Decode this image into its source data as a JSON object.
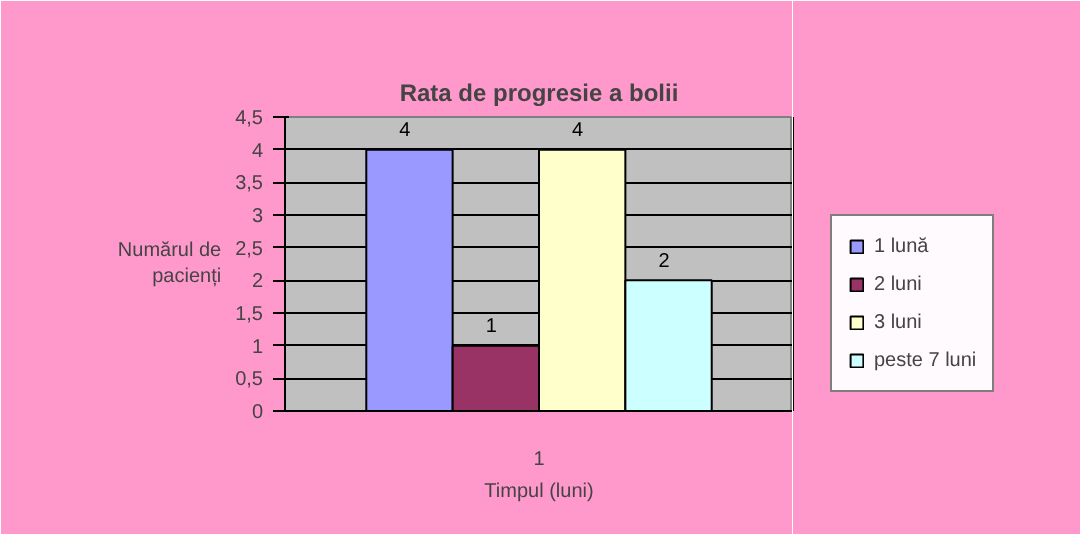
{
  "chart_data": {
    "type": "bar",
    "title": "Rata de progresie a bolii",
    "xlabel": "Timpul (luni)",
    "ylabel": "Numărul de pacienți",
    "categories": [
      "1"
    ],
    "series": [
      {
        "name": "1 lună",
        "color": "#9999ff",
        "values": [
          4
        ]
      },
      {
        "name": "2 luni",
        "color": "#993366",
        "values": [
          1
        ]
      },
      {
        "name": "3 luni",
        "color": "#ffffcc",
        "values": [
          4
        ]
      },
      {
        "name": "peste 7 luni",
        "color": "#ccffff",
        "values": [
          2
        ]
      }
    ],
    "ylim": [
      0,
      4.5
    ],
    "yticks": [
      0,
      {
        "value": 0.5,
        "label": "0,5"
      },
      1,
      {
        "value": 1.5,
        "label": "1,5"
      },
      2,
      {
        "value": 2.5,
        "label": "2,5"
      },
      3,
      {
        "value": 3.5,
        "label": "3,5"
      },
      4,
      {
        "value": 4.5,
        "label": "4,5"
      }
    ],
    "grid": "y",
    "legend": "right",
    "data_labels": true
  }
}
